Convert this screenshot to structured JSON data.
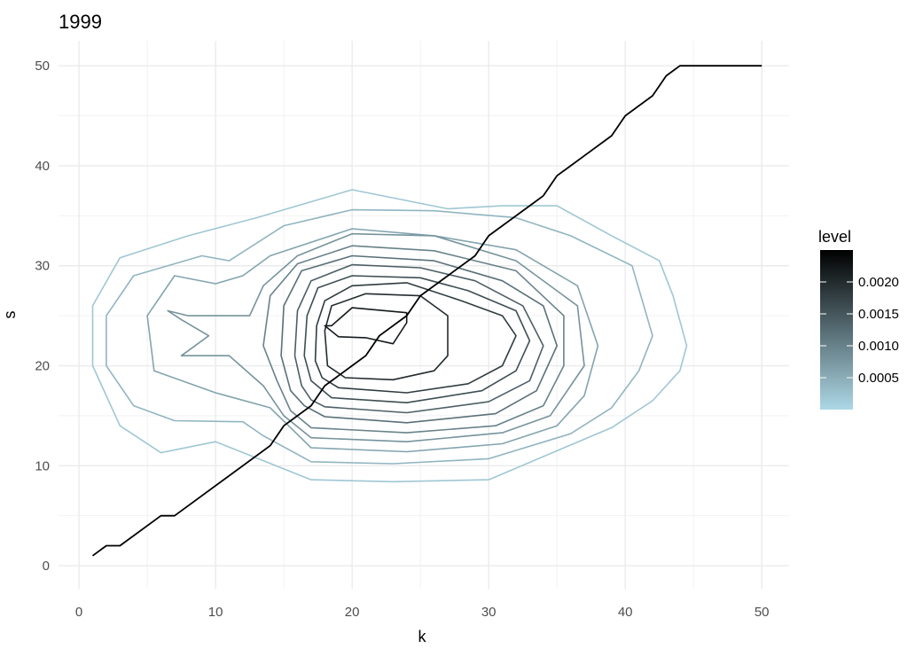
{
  "chart_data": {
    "type": "line",
    "title": "1999",
    "xlabel": "k",
    "ylabel": "s",
    "xlim": [
      -1.5,
      52
    ],
    "ylim": [
      -2.3,
      52.5
    ],
    "x_ticks": [
      0,
      10,
      20,
      30,
      40,
      50
    ],
    "y_ticks": [
      0,
      10,
      20,
      30,
      40,
      50
    ],
    "grid": true,
    "legend": {
      "title": "level",
      "position": "right",
      "range": [
        0,
        0.0025
      ],
      "ticks": [
        {
          "value": 0.0005,
          "label": "0.0005"
        },
        {
          "value": 0.001,
          "label": "0.0010"
        },
        {
          "value": 0.0015,
          "label": "0.0015"
        },
        {
          "value": 0.002,
          "label": "0.0020"
        }
      ],
      "colors": {
        "low": "#add8e6",
        "high": "#000000"
      }
    },
    "line_series": {
      "color": "#000000",
      "x": [
        1,
        2,
        3,
        6,
        7,
        14,
        15,
        17,
        18,
        20,
        21,
        22,
        24,
        25,
        29,
        30,
        31,
        33,
        34,
        35,
        36,
        37,
        39,
        40,
        42,
        43,
        44,
        45,
        50
      ],
      "y": [
        1,
        2,
        2,
        5,
        5,
        12,
        14,
        16,
        18,
        20,
        21,
        23,
        25,
        27,
        31,
        33,
        34,
        36,
        37,
        39,
        40,
        41,
        43,
        45,
        47,
        49,
        50,
        50,
        50
      ]
    },
    "contours": [
      {
        "level": 0.0002,
        "points": [
          [
            17,
            8.6
          ],
          [
            23,
            8.4
          ],
          [
            30,
            8.6
          ],
          [
            35,
            11.5
          ],
          [
            39,
            13.8
          ],
          [
            42,
            16.5
          ],
          [
            44,
            19.5
          ],
          [
            44.5,
            22
          ],
          [
            43.5,
            27
          ],
          [
            42.5,
            30.5
          ],
          [
            39,
            33
          ],
          [
            35,
            36
          ],
          [
            31,
            36
          ],
          [
            27,
            35.7
          ],
          [
            20,
            37.6
          ],
          [
            13,
            34.8
          ],
          [
            8,
            33
          ],
          [
            3,
            30.8
          ],
          [
            1,
            26
          ],
          [
            1,
            20
          ],
          [
            3,
            14
          ],
          [
            6,
            11.3
          ],
          [
            10,
            12.4
          ],
          [
            13.5,
            10.5
          ]
        ]
      },
      {
        "level": 0.0004,
        "points": [
          [
            17,
            10.4
          ],
          [
            23,
            10.2
          ],
          [
            30,
            10.7
          ],
          [
            36,
            13.2
          ],
          [
            39,
            15.8
          ],
          [
            41,
            19.5
          ],
          [
            42,
            23
          ],
          [
            40.5,
            30
          ],
          [
            36,
            33
          ],
          [
            32,
            34.8
          ],
          [
            26,
            35.5
          ],
          [
            20,
            35.6
          ],
          [
            15,
            34
          ],
          [
            11,
            30.5
          ],
          [
            9,
            31
          ],
          [
            4,
            29
          ],
          [
            2,
            25
          ],
          [
            2,
            20
          ],
          [
            4,
            16
          ],
          [
            7,
            14.5
          ],
          [
            12,
            14.4
          ],
          [
            13.5,
            13
          ]
        ]
      },
      {
        "level": 0.0006,
        "points": [
          [
            17,
            11.8
          ],
          [
            24,
            11.4
          ],
          [
            31,
            12.2
          ],
          [
            35,
            14
          ],
          [
            37,
            17
          ],
          [
            38,
            22
          ],
          [
            36.5,
            28
          ],
          [
            32,
            31.6
          ],
          [
            26,
            33
          ],
          [
            20,
            33.7
          ],
          [
            14,
            31
          ],
          [
            12,
            29
          ],
          [
            10,
            28.2
          ],
          [
            7,
            29
          ],
          [
            5,
            25
          ],
          [
            5.5,
            19.5
          ],
          [
            10,
            17.3
          ],
          [
            14,
            15.8
          ]
        ]
      },
      {
        "level": 0.0008,
        "points": [
          [
            17,
            12.8
          ],
          [
            24,
            12.4
          ],
          [
            31,
            13.3
          ],
          [
            34.5,
            15
          ],
          [
            37,
            20
          ],
          [
            36.5,
            26
          ],
          [
            32,
            30.5
          ],
          [
            26,
            33
          ],
          [
            20,
            33.2
          ],
          [
            16,
            31
          ],
          [
            13.5,
            28
          ],
          [
            12.5,
            25
          ],
          [
            8,
            25
          ],
          [
            6.5,
            25.5
          ],
          [
            7.5,
            24.6
          ],
          [
            9.5,
            23
          ],
          [
            7.5,
            21
          ],
          [
            11,
            21
          ],
          [
            13.5,
            18
          ],
          [
            15,
            15
          ]
        ]
      },
      {
        "level": 0.001,
        "points": [
          [
            17,
            13.8
          ],
          [
            24,
            13.3
          ],
          [
            30.5,
            14
          ],
          [
            34,
            16
          ],
          [
            35.5,
            20
          ],
          [
            35.5,
            25
          ],
          [
            32,
            29.5
          ],
          [
            26,
            31.5
          ],
          [
            20,
            32
          ],
          [
            16,
            30.2
          ],
          [
            14,
            27
          ],
          [
            13.5,
            22
          ],
          [
            14.5,
            18.5
          ],
          [
            15.5,
            15.5
          ]
        ]
      },
      {
        "level": 0.0012,
        "points": [
          [
            18,
            14.9
          ],
          [
            24,
            14.3
          ],
          [
            30.5,
            15.2
          ],
          [
            33.5,
            17.5
          ],
          [
            35,
            22
          ],
          [
            34,
            26
          ],
          [
            31,
            28.5
          ],
          [
            26,
            30.5
          ],
          [
            20,
            31
          ],
          [
            16.3,
            29.5
          ],
          [
            15,
            26
          ],
          [
            14.8,
            21
          ],
          [
            15.5,
            17.5
          ],
          [
            16.5,
            16
          ]
        ]
      },
      {
        "level": 0.0014,
        "points": [
          [
            18,
            15.9
          ],
          [
            24,
            15.3
          ],
          [
            30,
            16.4
          ],
          [
            33,
            18.5
          ],
          [
            34,
            22
          ],
          [
            32.5,
            26
          ],
          [
            29,
            28.5
          ],
          [
            25,
            29.8
          ],
          [
            20,
            30.1
          ],
          [
            17,
            28.5
          ],
          [
            16,
            25.5
          ],
          [
            15.8,
            21
          ],
          [
            16.3,
            18
          ],
          [
            17,
            16.6
          ]
        ]
      },
      {
        "level": 0.0016,
        "points": [
          [
            18.5,
            16.8
          ],
          [
            24,
            16.3
          ],
          [
            29.5,
            17.5
          ],
          [
            32,
            19.5
          ],
          [
            33,
            22.5
          ],
          [
            32,
            25.5
          ],
          [
            28.5,
            27.5
          ],
          [
            25,
            28.8
          ],
          [
            20,
            29
          ],
          [
            17.5,
            27.8
          ],
          [
            16.7,
            25
          ],
          [
            16.5,
            21
          ],
          [
            17,
            18.5
          ]
        ]
      },
      {
        "level": 0.0018,
        "points": [
          [
            19,
            17.8
          ],
          [
            24,
            17.3
          ],
          [
            28.5,
            18.2
          ],
          [
            31,
            20
          ],
          [
            32,
            23
          ],
          [
            31,
            25
          ],
          [
            28,
            26.5
          ],
          [
            24,
            28.3
          ],
          [
            20,
            28
          ],
          [
            18,
            26.5
          ],
          [
            17.4,
            24
          ],
          [
            17.3,
            20.5
          ],
          [
            17.8,
            18.8
          ]
        ]
      },
      {
        "level": 0.002,
        "points": [
          [
            19.5,
            18.8
          ],
          [
            23,
            18.6
          ],
          [
            26,
            19.5
          ],
          [
            27,
            21
          ],
          [
            27,
            25
          ],
          [
            25,
            27
          ],
          [
            21,
            27.2
          ],
          [
            18.5,
            26
          ],
          [
            18,
            23.5
          ],
          [
            18.2,
            20
          ]
        ]
      },
      {
        "level": 0.0022,
        "points": [
          [
            18.5,
            24
          ],
          [
            20,
            25.8
          ],
          [
            24,
            25.3
          ],
          [
            24,
            24.3
          ],
          [
            23,
            22.2
          ],
          [
            21,
            22.8
          ],
          [
            19,
            22.9
          ],
          [
            18,
            24
          ]
        ]
      }
    ]
  }
}
